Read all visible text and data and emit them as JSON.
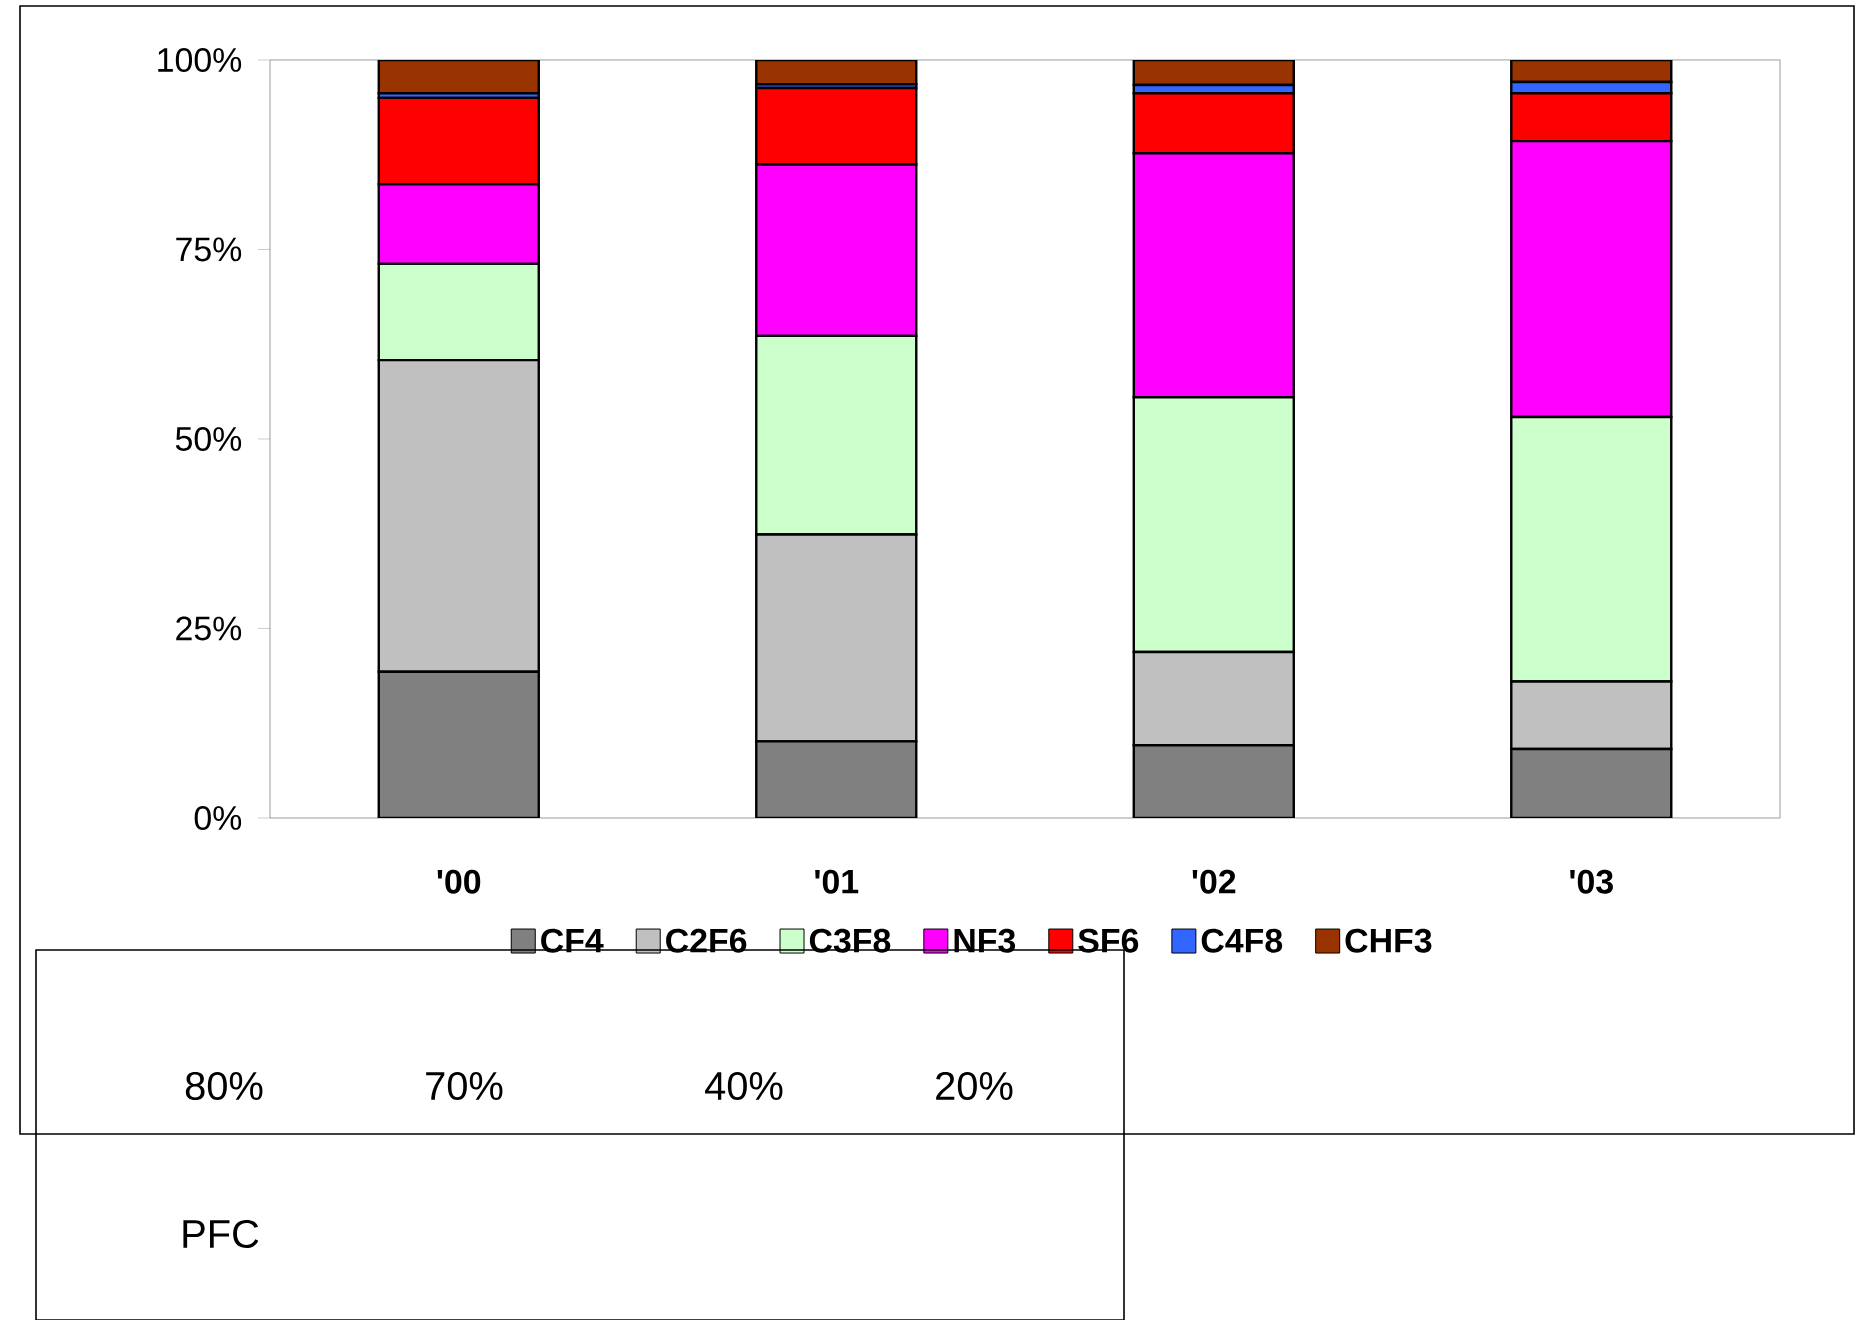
{
  "chart_data": {
    "type": "bar",
    "stacked": true,
    "categories": [
      "'00",
      "'01",
      "'02",
      "'03"
    ],
    "series": [
      {
        "name": "CF4",
        "color": "#808080",
        "values": [
          19.3,
          10.1,
          9.6,
          9.1
        ]
      },
      {
        "name": "C2F6",
        "color": "#c0c0c0",
        "values": [
          41.1,
          27.3,
          12.3,
          8.9
        ]
      },
      {
        "name": "C3F8",
        "color": "#ccffcc",
        "values": [
          12.7,
          26.2,
          33.6,
          34.9
        ]
      },
      {
        "name": "NF3",
        "color": "#ff00ff",
        "values": [
          10.5,
          22.6,
          32.2,
          36.4
        ]
      },
      {
        "name": "SF6",
        "color": "#ff0000",
        "values": [
          11.4,
          10.1,
          7.9,
          6.3
        ]
      },
      {
        "name": "C4F8",
        "color": "#3366ff",
        "values": [
          0.6,
          0.5,
          1.1,
          1.5
        ]
      },
      {
        "name": "CHF3",
        "color": "#993300",
        "values": [
          4.4,
          3.2,
          3.3,
          2.9
        ]
      }
    ],
    "ylim": [
      0,
      100
    ],
    "yticks": [
      {
        "value": 0,
        "label": "0%"
      },
      {
        "value": 25,
        "label": "25%"
      },
      {
        "value": 50,
        "label": "50%"
      },
      {
        "value": 75,
        "label": "75%"
      },
      {
        "value": 100,
        "label": "100%"
      }
    ],
    "legend": "bottom",
    "annotations": [
      "80%",
      "70%",
      "40%",
      "20%",
      "PFC"
    ]
  }
}
